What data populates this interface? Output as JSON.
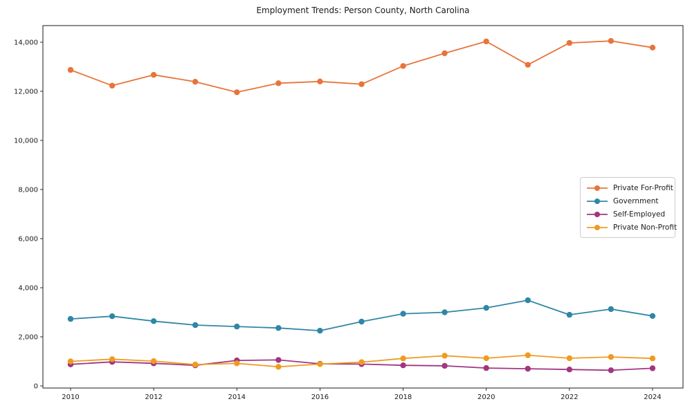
{
  "title": "Employment Trends: Person County, North Carolina",
  "chart_data": {
    "type": "line",
    "title": "Employment Trends: Person County, North Carolina",
    "xlabel": "",
    "ylabel": "",
    "x": [
      2010,
      2011,
      2012,
      2013,
      2014,
      2015,
      2016,
      2017,
      2018,
      2019,
      2020,
      2021,
      2022,
      2023,
      2024
    ],
    "series": [
      {
        "name": "Private For-Profit",
        "color": "#e8743b",
        "values": [
          12870,
          12230,
          12670,
          12390,
          11960,
          12330,
          12400,
          12290,
          13030,
          13550,
          14030,
          13080,
          13970,
          14050,
          13780
        ]
      },
      {
        "name": "Government",
        "color": "#2f87a6",
        "values": [
          2730,
          2840,
          2640,
          2480,
          2420,
          2360,
          2250,
          2620,
          2940,
          3000,
          3180,
          3490,
          2900,
          3130,
          2850
        ]
      },
      {
        "name": "Self-Employed",
        "color": "#a23580",
        "values": [
          880,
          980,
          920,
          840,
          1040,
          1060,
          900,
          890,
          840,
          820,
          730,
          700,
          670,
          640,
          720
        ]
      },
      {
        "name": "Private Non-Profit",
        "color": "#ef9b20",
        "values": [
          1000,
          1090,
          1010,
          870,
          920,
          780,
          890,
          970,
          1120,
          1230,
          1130,
          1250,
          1130,
          1180,
          1120
        ]
      }
    ],
    "xticks": [
      2010,
      2012,
      2014,
      2016,
      2018,
      2020,
      2022,
      2024
    ],
    "xtick_labels": [
      "2010",
      "2012",
      "2014",
      "2016",
      "2018",
      "2020",
      "2022",
      "2024"
    ],
    "yticks": [
      0,
      2000,
      4000,
      6000,
      8000,
      10000,
      12000,
      14000
    ],
    "ytick_labels": [
      "0",
      "2,000",
      "4,000",
      "6,000",
      "8,000",
      "10,000",
      "12,000",
      "14,000"
    ],
    "ylim": [
      0,
      14680
    ],
    "grid": false,
    "legend_position": "right",
    "marker": "circle",
    "line_width": 1.8,
    "marker_radius": 4.2
  }
}
